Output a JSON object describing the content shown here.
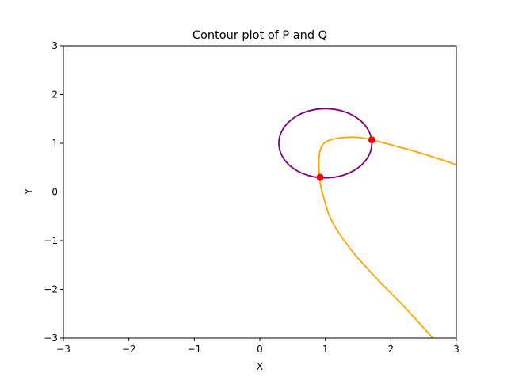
{
  "chart_data": {
    "type": "line",
    "title": "Contour plot of P and Q",
    "xlabel": "X",
    "ylabel": "Y",
    "xlim": [
      -3,
      3
    ],
    "ylim": [
      -3,
      3
    ],
    "x_ticks": [
      -3,
      -2,
      -1,
      0,
      1,
      2,
      3
    ],
    "y_ticks": [
      -3,
      -2,
      -1,
      0,
      1,
      2,
      3
    ],
    "x_tick_labels": [
      "−3",
      "−2",
      "−1",
      "0",
      "1",
      "2",
      "3"
    ],
    "y_tick_labels": [
      "−3",
      "−2",
      "−1",
      "0",
      "1",
      "2",
      "3"
    ],
    "grid": false,
    "series": [
      {
        "kind": "circle",
        "color": "#800080",
        "center": [
          1.0,
          1.0
        ],
        "radius": 0.71
      },
      {
        "kind": "curve",
        "color": "#ffa500",
        "x": [
          2.64,
          2.2,
          1.8,
          1.4,
          1.1,
          0.96,
          0.92,
          0.91,
          0.9,
          0.92,
          0.98,
          1.1,
          1.3,
          1.5,
          1.71,
          2.0,
          2.5,
          3.0
        ],
        "y": [
          -3.0,
          -2.35,
          -1.8,
          -1.2,
          -0.6,
          -0.05,
          0.2,
          0.3,
          0.6,
          0.85,
          1.0,
          1.08,
          1.12,
          1.12,
          1.07,
          0.97,
          0.78,
          0.56
        ]
      }
    ],
    "points": {
      "color": "#ff0000",
      "x": [
        0.92,
        1.71
      ],
      "y": [
        0.3,
        1.07
      ]
    }
  }
}
